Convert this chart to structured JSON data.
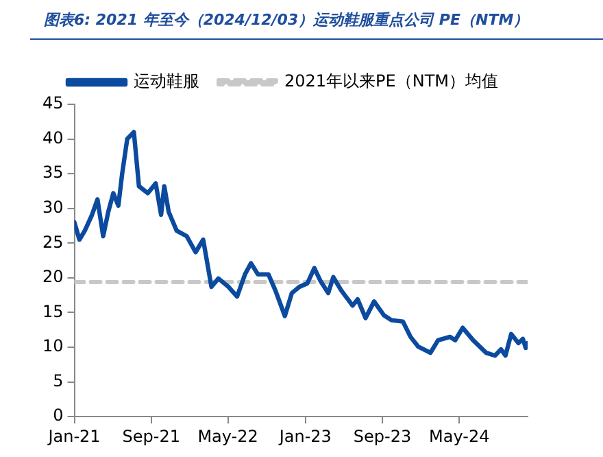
{
  "chart_data": {
    "type": "line",
    "title": "图表6:  2021 年至今（2024/12/03）运动鞋服重点公司 PE（NTM）",
    "x": [
      "2021-01-01",
      "2021-01-17",
      "2021-02-03",
      "2021-02-25",
      "2021-03-15",
      "2021-04-02",
      "2021-04-18",
      "2021-05-04",
      "2021-05-20",
      "2021-06-01",
      "2021-06-17",
      "2021-07-08",
      "2021-07-24",
      "2021-08-21",
      "2021-09-15",
      "2021-10-02",
      "2021-10-12",
      "2021-10-26",
      "2021-11-20",
      "2021-12-22",
      "2022-01-19",
      "2022-02-12",
      "2022-03-10",
      "2022-04-01",
      "2022-05-03",
      "2022-05-30",
      "2022-06-24",
      "2022-07-13",
      "2022-08-04",
      "2022-09-06",
      "2022-09-28",
      "2022-10-28",
      "2022-11-19",
      "2022-12-13",
      "2023-01-07",
      "2023-01-29",
      "2023-02-17",
      "2023-03-14",
      "2023-03-30",
      "2023-04-24",
      "2023-05-30",
      "2023-06-15",
      "2023-07-10",
      "2023-08-06",
      "2023-09-06",
      "2023-09-30",
      "2023-11-05",
      "2023-11-29",
      "2023-12-23",
      "2024-01-31",
      "2024-02-24",
      "2024-04-02",
      "2024-04-18",
      "2024-05-12",
      "2024-06-14",
      "2024-07-25",
      "2024-08-22",
      "2024-09-10",
      "2024-09-24",
      "2024-10-12",
      "2024-11-04",
      "2024-11-18",
      "2024-11-27",
      "2024-12-03"
    ],
    "series": [
      {
        "name": "运动鞋服",
        "color": "#0b4a9e",
        "line_style": "solid",
        "values": [
          28,
          25.5,
          26.8,
          29,
          31.3,
          26,
          29.5,
          32.2,
          30.4,
          35,
          40,
          41,
          33.2,
          32.2,
          33.6,
          29.1,
          33.2,
          29.5,
          26.8,
          26,
          23.7,
          25.5,
          18.7,
          19.9,
          18.7,
          17.3,
          20.5,
          22.1,
          20.5,
          20.5,
          18.2,
          14.5,
          17.8,
          18.7,
          19.2,
          21.4,
          19.6,
          17.8,
          20.1,
          18.2,
          16,
          16.9,
          14.2,
          16.6,
          14.6,
          13.9,
          13.7,
          11.5,
          10.1,
          9.2,
          11,
          11.5,
          11,
          12.8,
          11,
          9.2,
          8.8,
          9.7,
          8.8,
          11.9,
          10.6,
          11.2,
          9.9,
          10.6
        ]
      },
      {
        "name": "2021年以来PE（NTM）均值",
        "color": "#c8c8c8",
        "line_style": "dashed",
        "x": [
          "2021-01-01",
          "2024-12-03"
        ],
        "values": [
          19.4,
          19.4
        ]
      }
    ],
    "xlim": [
      "2021-01-01",
      "2024-12-03"
    ],
    "xticks": [
      {
        "value": "2021-01-01",
        "label": "Jan-21"
      },
      {
        "value": "2021-09-01",
        "label": "Sep-21"
      },
      {
        "value": "2022-05-01",
        "label": "May-22"
      },
      {
        "value": "2023-01-01",
        "label": "Jan-23"
      },
      {
        "value": "2023-09-01",
        "label": "Sep-23"
      },
      {
        "value": "2024-05-01",
        "label": "May-24"
      }
    ],
    "ylim": [
      0,
      45
    ],
    "yticks": [
      0,
      5,
      10,
      15,
      20,
      25,
      30,
      35,
      40,
      45
    ],
    "grid": false,
    "legend": "top",
    "marker": "none"
  }
}
